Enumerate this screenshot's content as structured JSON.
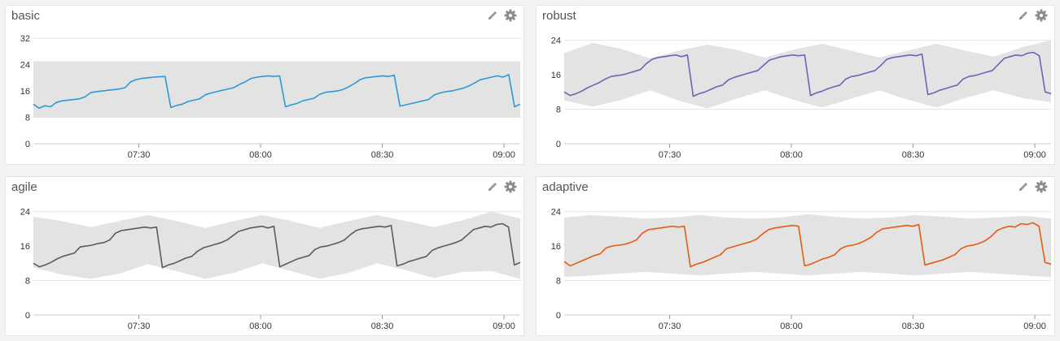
{
  "page": {
    "background": "#f3f3f3"
  },
  "icons": {
    "edit": "pencil-icon",
    "settings": "gear-icon"
  },
  "panels": [
    {
      "title": "basic"
    },
    {
      "title": "robust"
    },
    {
      "title": "agile"
    },
    {
      "title": "adaptive"
    }
  ],
  "chart_data": [
    {
      "type": "area",
      "title": "basic",
      "xlabel": "",
      "ylabel": "",
      "x_range": [
        "07:04",
        "09:04"
      ],
      "ylim": [
        0,
        34
      ],
      "yticks": [
        0,
        8,
        16,
        24,
        32
      ],
      "xticks": [
        "07:30",
        "08:00",
        "08:30",
        "09:00"
      ],
      "grid": true,
      "color": "#2b9bd4",
      "band_color": "#e3e3e3",
      "series": [
        {
          "values": [
            12,
            10.8,
            11.5,
            11.2,
            12.5,
            13,
            13.2,
            13.4,
            13.6,
            14.2,
            15.5,
            15.8,
            16,
            16.2,
            16.4,
            16.6,
            17,
            18.8,
            19.5,
            19.8,
            20,
            20.2,
            20.3,
            20.4,
            11,
            11.6,
            12,
            12.8,
            13.2,
            13.6,
            14.8,
            15.4,
            15.8,
            16.2,
            16.6,
            17,
            18,
            18.8,
            19.8,
            20.2,
            20.4,
            20.6,
            20.4,
            20.6,
            11.2,
            11.8,
            12.2,
            13,
            13.4,
            13.8,
            15,
            15.6,
            15.8,
            16,
            16.4,
            17.2,
            18.2,
            19.4,
            20,
            20.2,
            20.4,
            20.6,
            20.4,
            20.8,
            11.4,
            11.8,
            12.2,
            12.6,
            13,
            13.4,
            14.8,
            15.4,
            15.8,
            16,
            16.4,
            16.8,
            17.5,
            18.4,
            19.4,
            19.8,
            20.2,
            20.6,
            20.2,
            21,
            11.2,
            12
          ]
        }
      ],
      "band": {
        "upper": [
          25,
          25
        ],
        "lower": [
          8,
          8
        ]
      }
    },
    {
      "type": "area",
      "title": "robust",
      "xlabel": "",
      "ylabel": "",
      "x_range": [
        "07:04",
        "09:04"
      ],
      "ylim": [
        0,
        26
      ],
      "yticks": [
        0,
        8,
        16,
        24
      ],
      "xticks": [
        "07:30",
        "08:00",
        "08:30",
        "09:00"
      ],
      "grid": true,
      "color": "#7262b3",
      "band_color": "#e3e3e3",
      "series": [
        {
          "values": [
            12,
            11.2,
            11.6,
            12.2,
            13,
            13.6,
            14.2,
            15,
            15.6,
            15.8,
            16,
            16.4,
            16.8,
            17.2,
            18.6,
            19.6,
            20,
            20.2,
            20.4,
            20.6,
            20.2,
            20.6,
            11,
            11.6,
            12,
            12.6,
            13.2,
            13.6,
            14.8,
            15.4,
            15.8,
            16.2,
            16.6,
            17,
            18.2,
            19.4,
            19.8,
            20.2,
            20.4,
            20.6,
            20.4,
            20.6,
            11.2,
            11.8,
            12.2,
            12.8,
            13.2,
            13.6,
            15,
            15.6,
            15.8,
            16.2,
            16.6,
            17,
            18.2,
            19.6,
            20,
            20.2,
            20.4,
            20.6,
            20.4,
            20.8,
            11.4,
            11.8,
            12.4,
            12.8,
            13.2,
            13.6,
            15,
            15.6,
            15.8,
            16.2,
            16.6,
            17,
            18.4,
            19.8,
            20.2,
            20.6,
            20.4,
            21,
            21.2,
            20.4,
            12,
            11.6
          ]
        }
      ],
      "band": {
        "upper": [
          21,
          23.4,
          22,
          19.8,
          21.6,
          23,
          21.8,
          20,
          21.8,
          23.2,
          21.6,
          20,
          21.6,
          23.2,
          21.6,
          20.2,
          22.4,
          24
        ],
        "lower": [
          10,
          8.6,
          10.2,
          12.4,
          10,
          8.2,
          10.4,
          12.4,
          10.2,
          8.4,
          10.4,
          12.4,
          10.2,
          8.4,
          10.6,
          12.4,
          10.6,
          9.6
        ]
      }
    },
    {
      "type": "area",
      "title": "agile",
      "xlabel": "",
      "ylabel": "",
      "x_range": [
        "07:04",
        "09:04"
      ],
      "ylim": [
        0,
        26
      ],
      "yticks": [
        0,
        8,
        16,
        24
      ],
      "xticks": [
        "07:30",
        "08:00",
        "08:30",
        "09:00"
      ],
      "grid": true,
      "color": "#5b5b5b",
      "band_color": "#e3e3e3",
      "series": [
        {
          "values": [
            12,
            11.2,
            11.6,
            12.2,
            13,
            13.6,
            14,
            14.4,
            15.8,
            16,
            16.2,
            16.6,
            16.8,
            17.4,
            19,
            19.6,
            19.8,
            20,
            20.2,
            20.4,
            20.2,
            20.4,
            11,
            11.6,
            12,
            12.6,
            13.2,
            13.6,
            14.8,
            15.6,
            16,
            16.4,
            16.8,
            17.4,
            18.4,
            19.4,
            19.8,
            20.2,
            20.4,
            20.6,
            20.2,
            20.6,
            11.2,
            11.8,
            12.4,
            13,
            13.4,
            13.8,
            15.2,
            15.8,
            16,
            16.4,
            16.8,
            17.4,
            18.6,
            19.6,
            20,
            20.2,
            20.4,
            20.6,
            20.4,
            20.8,
            11.4,
            11.8,
            12.4,
            12.8,
            13.2,
            13.6,
            15,
            15.6,
            16,
            16.4,
            16.8,
            17.4,
            18.6,
            19.8,
            20.2,
            20.6,
            20.4,
            21,
            21.2,
            20.4,
            11.6,
            12.2
          ]
        }
      ],
      "band": {
        "upper": [
          22.8,
          21.8,
          20.4,
          21.8,
          23.2,
          21.8,
          20.2,
          21.8,
          23.2,
          21.8,
          20.2,
          21.8,
          23.2,
          21.8,
          20.4,
          22,
          24,
          22.4
        ],
        "lower": [
          11,
          9.4,
          8.4,
          9.6,
          11.8,
          10.2,
          8.4,
          9.8,
          12,
          10.2,
          8.4,
          9.8,
          12,
          10.4,
          8.6,
          10,
          10.2,
          8.4
        ]
      }
    },
    {
      "type": "area",
      "title": "adaptive",
      "xlabel": "",
      "ylabel": "",
      "x_range": [
        "07:04",
        "09:04"
      ],
      "ylim": [
        0,
        26
      ],
      "yticks": [
        0,
        8,
        16,
        24
      ],
      "xticks": [
        "07:30",
        "08:00",
        "08:30",
        "09:00"
      ],
      "grid": true,
      "color": "#e35d12",
      "band_color": "#e3e3e3",
      "series": [
        {
          "values": [
            12.4,
            11.4,
            12,
            12.6,
            13.2,
            13.8,
            14.2,
            15.6,
            16,
            16.2,
            16.4,
            16.8,
            17.4,
            19,
            19.8,
            20,
            20.2,
            20.4,
            20.6,
            20.4,
            20.6,
            11.2,
            11.8,
            12.2,
            12.8,
            13.4,
            14,
            15.4,
            15.8,
            16.2,
            16.6,
            17,
            17.6,
            18.8,
            19.8,
            20.2,
            20.4,
            20.6,
            20.8,
            20.6,
            11.4,
            11.8,
            12.4,
            13,
            13.4,
            14,
            15.4,
            16,
            16.2,
            16.6,
            17.2,
            18,
            19.2,
            20,
            20.2,
            20.4,
            20.6,
            20.8,
            20.6,
            21,
            11.6,
            12,
            12.4,
            12.8,
            13.4,
            14,
            15.4,
            16,
            16.2,
            16.6,
            17.2,
            18.2,
            19.6,
            20.2,
            20.6,
            20.4,
            21.2,
            21,
            21.4,
            20.6,
            12.2,
            11.8
          ]
        }
      ],
      "band": {
        "upper": [
          22.6,
          23.2,
          22.8,
          22.4,
          22.6,
          23.2,
          22.6,
          22.4,
          22.6,
          23.4,
          22.8,
          22.4,
          22.6,
          23.2,
          22.8,
          22.4,
          22.6,
          23,
          22.4
        ],
        "lower": [
          8.8,
          9.2,
          9.6,
          10,
          9.6,
          9.2,
          9.6,
          10,
          9.6,
          9.2,
          9.6,
          10,
          9.6,
          9.2,
          9.6,
          10,
          9.6,
          9.2,
          8.8
        ]
      }
    }
  ]
}
